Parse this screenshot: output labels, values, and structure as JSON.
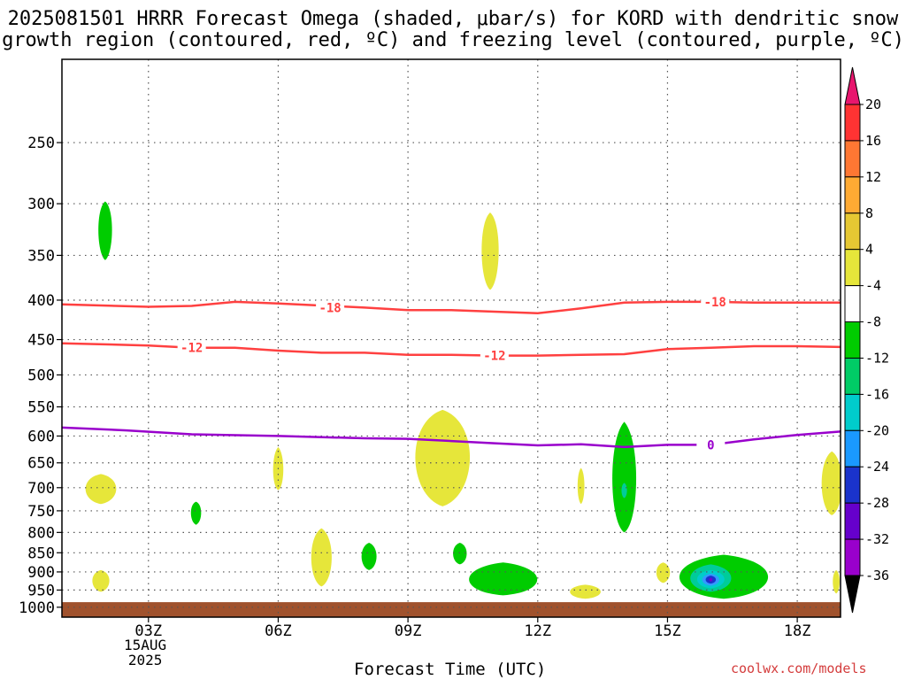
{
  "title": {
    "line1": "2025081501 HRRR Forecast Omega (shaded, μbar/s) for KORD with dendritic snow",
    "line2": "growth region (contoured, red, ºC) and freezing level (contoured, purple, ºC)"
  },
  "credit": "coolwx.com/models",
  "chart_data": {
    "type": "contour",
    "title": "2025081501 HRRR Forecast Omega (shaded, μbar/s) for KORD with dendritic snow growth region (contoured, red, ºC) and freezing level (contoured, purple, ºC)",
    "xlabel": "Forecast Time (UTC)",
    "xlim": [
      1,
      19
    ],
    "x_ticks": [
      {
        "value": 3,
        "label": "03Z"
      },
      {
        "value": 6,
        "label": "06Z"
      },
      {
        "value": 9,
        "label": "09Z"
      },
      {
        "value": 12,
        "label": "12Z"
      },
      {
        "value": 15,
        "label": "15Z"
      },
      {
        "value": 18,
        "label": "18Z"
      }
    ],
    "date_label": [
      "15AUG",
      "2025"
    ],
    "ylabel": "",
    "y_scale": "log-pressure",
    "ylim": [
      1030,
      195
    ],
    "y_ticks": [
      250,
      300,
      350,
      400,
      450,
      500,
      550,
      600,
      650,
      700,
      750,
      800,
      850,
      900,
      950,
      1000
    ],
    "grid": true,
    "ground_layer": {
      "color": "#a0522d",
      "from_hPa": 985
    },
    "isotherms": [
      {
        "label": "-18",
        "color": "#ff4040",
        "points": [
          [
            1,
            405
          ],
          [
            3,
            408
          ],
          [
            4,
            407
          ],
          [
            5,
            402
          ],
          [
            6,
            404
          ],
          [
            8,
            409
          ],
          [
            9,
            412
          ],
          [
            10,
            412
          ],
          [
            11,
            414
          ],
          [
            12,
            416
          ],
          [
            13,
            410
          ],
          [
            14,
            403
          ],
          [
            15,
            402
          ],
          [
            16,
            402
          ],
          [
            17,
            403
          ],
          [
            18,
            403
          ],
          [
            19,
            403
          ]
        ],
        "label_at": [
          [
            7.2,
            409
          ],
          [
            16.1,
            402
          ]
        ]
      },
      {
        "label": "-12",
        "color": "#ff4040",
        "points": [
          [
            1,
            455
          ],
          [
            3,
            458
          ],
          [
            4,
            461
          ],
          [
            5,
            461
          ],
          [
            6,
            465
          ],
          [
            7,
            468
          ],
          [
            8,
            468
          ],
          [
            9,
            471
          ],
          [
            10,
            471
          ],
          [
            11,
            472
          ],
          [
            12,
            472
          ],
          [
            13,
            471
          ],
          [
            14,
            470
          ],
          [
            15,
            463
          ],
          [
            16,
            461
          ],
          [
            17,
            459
          ],
          [
            18,
            459
          ],
          [
            19,
            460
          ]
        ],
        "label_at": [
          [
            4.0,
            461
          ],
          [
            11.0,
            472
          ]
        ]
      }
    ],
    "freezing_level": {
      "label": "0",
      "color": "#9900cc",
      "points": [
        [
          1,
          585
        ],
        [
          2.5,
          590
        ],
        [
          4,
          597
        ],
        [
          6,
          600
        ],
        [
          8,
          604
        ],
        [
          9,
          605
        ],
        [
          10,
          609
        ],
        [
          11,
          613
        ],
        [
          12,
          617
        ],
        [
          13,
          615
        ],
        [
          14,
          620
        ],
        [
          15,
          616
        ],
        [
          16,
          616
        ],
        [
          17,
          606
        ],
        [
          18,
          598
        ],
        [
          19,
          592
        ]
      ],
      "label_at": [
        [
          16.0,
          616
        ]
      ]
    },
    "omega_blobs": [
      {
        "color": "#e6e63a",
        "cx": 1.9,
        "cy": 700,
        "rx": 0.45,
        "ry_top": 672,
        "ry_bot": 735
      },
      {
        "color": "#e6e63a",
        "cx": 6.0,
        "cy": 670,
        "rx": 0.15,
        "ry_top": 620,
        "ry_bot": 705
      },
      {
        "color": "#e6e63a",
        "cx": 10.9,
        "cy": 340,
        "rx": 0.25,
        "ry_top": 308,
        "ry_bot": 388
      },
      {
        "color": "#e6e63a",
        "cx": 9.8,
        "cy": 630,
        "rx": 0.8,
        "ry_top": 555,
        "ry_bot": 740
      },
      {
        "color": "#e6e63a",
        "cx": 13.0,
        "cy": 695,
        "rx": 0.1,
        "ry_top": 660,
        "ry_bot": 735
      },
      {
        "color": "#e6e63a",
        "cx": 7.0,
        "cy": 860,
        "rx": 0.3,
        "ry_top": 790,
        "ry_bot": 940
      },
      {
        "color": "#e6e63a",
        "cx": 1.9,
        "cy": 920,
        "rx": 0.25,
        "ry_top": 895,
        "ry_bot": 955
      },
      {
        "color": "#e6e63a",
        "cx": 13.1,
        "cy": 955,
        "rx": 0.45,
        "ry_top": 935,
        "ry_bot": 975
      },
      {
        "color": "#e6e63a",
        "cx": 14.9,
        "cy": 900,
        "rx": 0.2,
        "ry_top": 875,
        "ry_bot": 930
      },
      {
        "color": "#e6e63a",
        "cx": 18.8,
        "cy": 690,
        "rx": 0.3,
        "ry_top": 628,
        "ry_bot": 760
      },
      {
        "color": "#e6e63a",
        "cx": 18.9,
        "cy": 925,
        "rx": 0.1,
        "ry_top": 895,
        "ry_bot": 960
      },
      {
        "color": "#00cc00",
        "cx": 2.0,
        "cy": 320,
        "rx": 0.2,
        "ry_top": 298,
        "ry_bot": 355
      },
      {
        "color": "#00cc00",
        "cx": 4.1,
        "cy": 750,
        "rx": 0.15,
        "ry_top": 730,
        "ry_bot": 782
      },
      {
        "color": "#00cc00",
        "cx": 8.1,
        "cy": 858,
        "rx": 0.22,
        "ry_top": 825,
        "ry_bot": 895
      },
      {
        "color": "#00cc00",
        "cx": 14.0,
        "cy": 690,
        "rx": 0.35,
        "ry_top": 575,
        "ry_bot": 800
      },
      {
        "color": "#00cc00",
        "cx": 10.2,
        "cy": 850,
        "rx": 0.2,
        "ry_top": 825,
        "ry_bot": 880
      },
      {
        "color": "#00cc00",
        "cx": 11.2,
        "cy": 925,
        "rx": 1.0,
        "ry_top": 875,
        "ry_bot": 965
      },
      {
        "color": "#00cc00",
        "cx": 16.3,
        "cy": 915,
        "rx": 1.3,
        "ry_top": 855,
        "ry_bot": 975
      }
    ],
    "omega_core": [
      {
        "color": "#00cc99",
        "cx": 16.0,
        "cy": 918,
        "rx": 0.6,
        "ry_top": 880,
        "ry_bot": 955
      },
      {
        "color": "#00cccc",
        "cx": 16.0,
        "cy": 920,
        "rx": 0.4,
        "ry_top": 895,
        "ry_bot": 945
      },
      {
        "color": "#3399ff",
        "cx": 16.0,
        "cy": 920,
        "rx": 0.25,
        "ry_top": 905,
        "ry_bot": 938
      },
      {
        "color": "#1a33cc",
        "cx": 16.0,
        "cy": 920,
        "rx": 0.15,
        "ry_top": 910,
        "ry_bot": 932
      },
      {
        "color": "#7700cc",
        "cx": 16.0,
        "cy": 920,
        "rx": 0.05,
        "ry_top": 916,
        "ry_bot": 926
      },
      {
        "color": "#00cc99",
        "cx": 14.0,
        "cy": 705,
        "rx": 0.08,
        "ry_top": 690,
        "ry_bot": 722
      }
    ],
    "colorbar": {
      "unit": "μbar/s",
      "labels": [
        "20",
        "16",
        "12",
        "8",
        "4",
        "-4",
        "-8",
        "-12",
        "-16",
        "-20",
        "-24",
        "-28",
        "-32",
        "-36"
      ],
      "colors_top_to_bottom": [
        "#e8166e",
        "#ff3333",
        "#ff7733",
        "#ffaa33",
        "#e6c833",
        "#e6e63a",
        "#ffffff",
        "#00cc00",
        "#00cc66",
        "#00cccc",
        "#1a99ff",
        "#1a33cc",
        "#6600cc",
        "#9900cc",
        "#b3b3b3",
        "#000000"
      ]
    }
  }
}
